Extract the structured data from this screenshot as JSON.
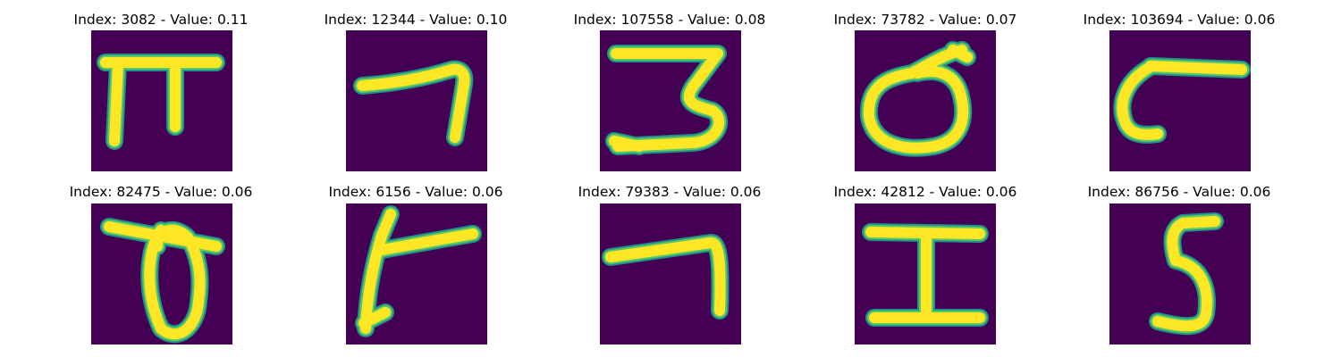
{
  "colors": {
    "background": "#440154",
    "stroke": "#fde725",
    "edge_mid": "#5ec962",
    "edge_outer": "#21918c"
  },
  "samples": [
    {
      "title": "Index: 3082 - Value: 0.11",
      "glyph_icon": "pi-like-glyph"
    },
    {
      "title": "Index: 12344 - Value: 0.10",
      "glyph_icon": "hook-stroke-glyph"
    },
    {
      "title": "Index: 107558 - Value: 0.08",
      "glyph_icon": "three-like-glyph"
    },
    {
      "title": "Index: 73782 - Value: 0.07",
      "glyph_icon": "loop-glyph"
    },
    {
      "title": "Index: 103694 - Value: 0.06",
      "glyph_icon": "curl-dash-glyph"
    },
    {
      "title": "Index: 82475 - Value: 0.06",
      "glyph_icon": "theta-like-glyph"
    },
    {
      "title": "Index: 6156 - Value: 0.06",
      "glyph_icon": "branch-glyph"
    },
    {
      "title": "Index: 79383 - Value: 0.06",
      "glyph_icon": "seven-like-glyph"
    },
    {
      "title": "Index: 42812 - Value: 0.06",
      "glyph_icon": "i-beam-glyph"
    },
    {
      "title": "Index: 86756 - Value: 0.06",
      "glyph_icon": "five-like-glyph"
    }
  ]
}
